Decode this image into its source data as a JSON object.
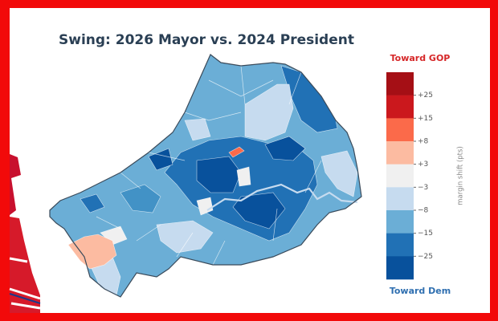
{
  "title": "Swing: 2026 Mayor vs. 2024 President",
  "legend": {
    "top_label": "Toward GOP",
    "bottom_label": "Toward Dem",
    "axis_label": "margin shift (pts)",
    "ticks": [
      "+25",
      "+15",
      "+8",
      "+3",
      "−3",
      "−8",
      "−15",
      "−25"
    ]
  }
}
